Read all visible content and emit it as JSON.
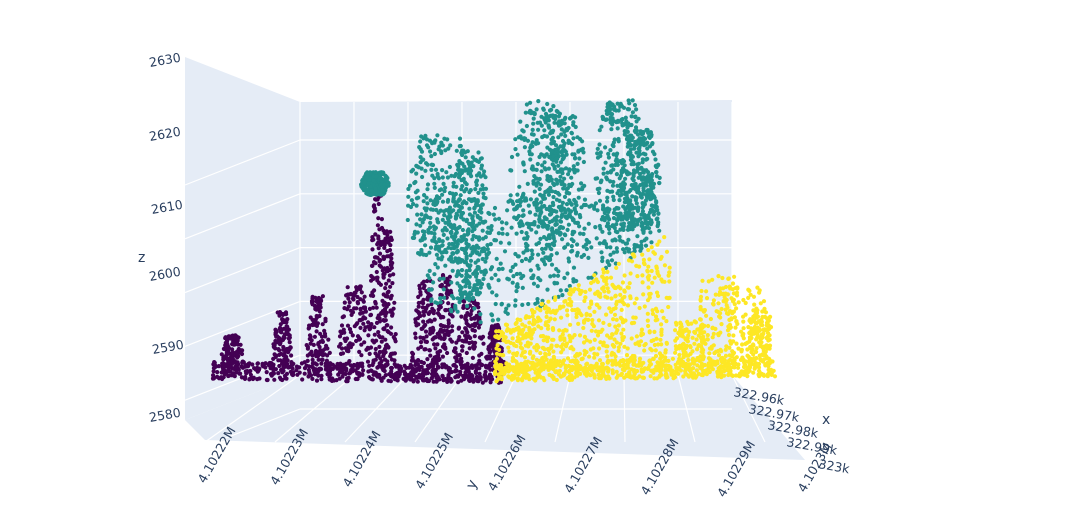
{
  "chart_data": {
    "type": "scatter3d",
    "title": "",
    "xlabel": "x",
    "ylabel": "y",
    "zlabel": "z",
    "zlim": [
      2578,
      2631
    ],
    "ylim": [
      4102215,
      4102305
    ],
    "xlim": [
      322955,
      323005
    ],
    "z_ticks": [
      "2580",
      "2590",
      "2600",
      "2610",
      "2620",
      "2630"
    ],
    "y_ticks": [
      "4.10222M",
      "4.10223M",
      "4.10224M",
      "4.10225M",
      "4.10226M",
      "4.10227M",
      "4.10228M",
      "4.10229M",
      "4.1023M"
    ],
    "x_ticks": [
      "322.96k",
      "322.97k",
      "322.98k",
      "322.99k",
      "323k"
    ],
    "colorscale": "viridis",
    "series": [
      {
        "color": "#440154",
        "y_range": [
          4102216,
          4102262
        ],
        "ground_z": 2586
      },
      {
        "color": "#21918c",
        "y_range": [
          4102248,
          4102290
        ],
        "z_range": [
          2595,
          2626
        ]
      },
      {
        "color": "#fde725",
        "y_range": [
          4102262,
          4102306
        ],
        "ground_z": 2586
      }
    ]
  }
}
